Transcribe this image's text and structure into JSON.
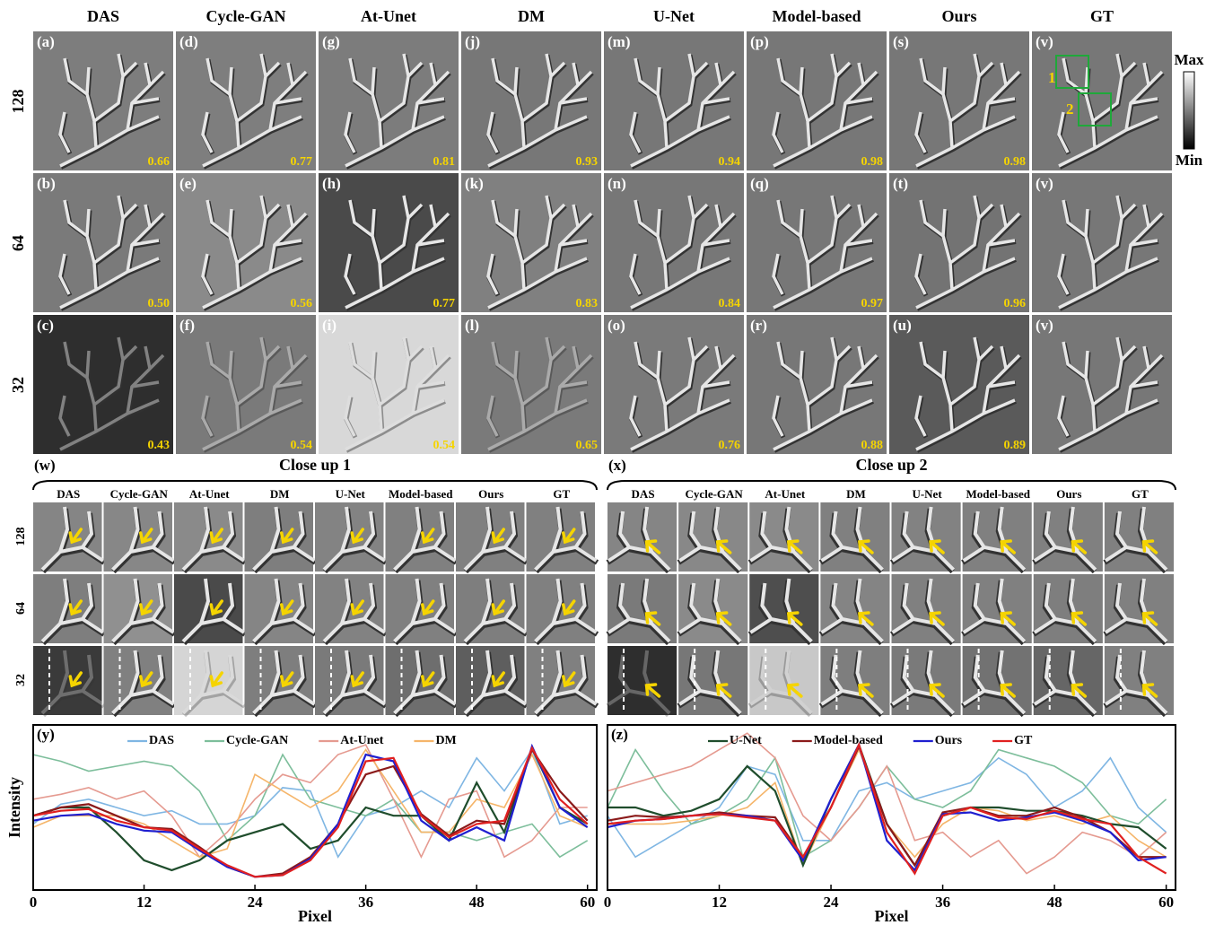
{
  "columns": [
    "DAS",
    "Cycle-GAN",
    "At-Unet",
    "DM",
    "U-Net",
    "Model-based",
    "Ours",
    "GT"
  ],
  "rows": [
    "128",
    "64",
    "32"
  ],
  "panels": [
    [
      {
        "label": "(a)",
        "score": "0.66"
      },
      {
        "label": "(d)",
        "score": "0.77"
      },
      {
        "label": "(g)",
        "score": "0.81"
      },
      {
        "label": "(j)",
        "score": "0.93"
      },
      {
        "label": "(m)",
        "score": "0.94"
      },
      {
        "label": "(p)",
        "score": "0.98"
      },
      {
        "label": "(s)",
        "score": "0.98"
      },
      {
        "label": "(v)"
      }
    ],
    [
      {
        "label": "(b)",
        "score": "0.50"
      },
      {
        "label": "(e)",
        "score": "0.56"
      },
      {
        "label": "(h)",
        "score": "0.77"
      },
      {
        "label": "(k)",
        "score": "0.83"
      },
      {
        "label": "(n)",
        "score": "0.84"
      },
      {
        "label": "(q)",
        "score": "0.97"
      },
      {
        "label": "(t)",
        "score": "0.96"
      },
      {
        "label": "(v)"
      }
    ],
    [
      {
        "label": "(c)",
        "score": "0.43"
      },
      {
        "label": "(f)",
        "score": "0.54"
      },
      {
        "label": "(i)",
        "score": "0.54"
      },
      {
        "label": "(l)",
        "score": "0.65"
      },
      {
        "label": "(o)",
        "score": "0.76"
      },
      {
        "label": "(r)",
        "score": "0.88"
      },
      {
        "label": "(u)",
        "score": "0.89"
      },
      {
        "label": "(v)"
      }
    ]
  ],
  "roi_labels": [
    "1",
    "2"
  ],
  "colorbar": {
    "max": "Max",
    "min": "Min"
  },
  "closeups": [
    {
      "label": "(w)",
      "title": "Close up 1"
    },
    {
      "label": "(x)",
      "title": "Close up 2"
    }
  ],
  "chart_data": [
    {
      "type": "line",
      "panel_label": "(y)",
      "xlabel": "Pixel",
      "ylabel": "Intensity",
      "x": [
        0,
        3,
        6,
        9,
        12,
        15,
        18,
        21,
        24,
        27,
        30,
        33,
        36,
        39,
        42,
        45,
        48,
        51,
        54,
        57,
        60
      ],
      "xlim": [
        0,
        61
      ],
      "xticks": [
        0,
        12,
        24,
        36,
        48,
        60
      ],
      "ylim": [
        0,
        1
      ],
      "series": [
        {
          "name": "DAS",
          "color": "#7fb6e3",
          "legend": true,
          "values": [
            0.4,
            0.52,
            0.55,
            0.5,
            0.45,
            0.48,
            0.4,
            0.4,
            0.45,
            0.62,
            0.6,
            0.2,
            0.45,
            0.5,
            0.6,
            0.5,
            0.8,
            0.6,
            0.85,
            0.4,
            0.45
          ]
        },
        {
          "name": "Cycle-GAN",
          "color": "#7dbe9b",
          "legend": true,
          "values": [
            0.82,
            0.78,
            0.72,
            0.75,
            0.78,
            0.75,
            0.6,
            0.3,
            0.45,
            0.82,
            0.55,
            0.5,
            0.45,
            0.55,
            0.35,
            0.35,
            0.3,
            0.35,
            0.4,
            0.2,
            0.3
          ]
        },
        {
          "name": "At-Unet",
          "color": "#e59a90",
          "legend": true,
          "values": [
            0.55,
            0.58,
            0.62,
            0.55,
            0.6,
            0.45,
            0.2,
            0.35,
            0.55,
            0.7,
            0.65,
            0.82,
            0.88,
            0.55,
            0.2,
            0.55,
            0.6,
            0.2,
            0.3,
            0.5,
            0.5
          ]
        },
        {
          "name": "DM",
          "color": "#f5b56a",
          "legend": true,
          "values": [
            0.38,
            0.45,
            0.45,
            0.45,
            0.4,
            0.3,
            0.2,
            0.25,
            0.7,
            0.6,
            0.5,
            0.6,
            0.85,
            0.6,
            0.35,
            0.35,
            0.55,
            0.5,
            0.82,
            0.45,
            0.38
          ]
        },
        {
          "name": "U-Net",
          "color": "#1f4d2c",
          "legend": false,
          "values": [
            0.45,
            0.5,
            0.5,
            0.35,
            0.18,
            0.12,
            0.18,
            0.3,
            0.35,
            0.4,
            0.25,
            0.3,
            0.5,
            0.45,
            0.45,
            0.3,
            0.65,
            0.35,
            0.86,
            0.5,
            0.4
          ]
        },
        {
          "name": "Model-based",
          "color": "#8b1a1a",
          "legend": false,
          "values": [
            0.45,
            0.5,
            0.52,
            0.45,
            0.38,
            0.37,
            0.26,
            0.14,
            0.08,
            0.1,
            0.2,
            0.4,
            0.7,
            0.75,
            0.46,
            0.33,
            0.42,
            0.4,
            0.85,
            0.6,
            0.42
          ]
        },
        {
          "name": "Ours",
          "color": "#1f1fd0",
          "legend": false,
          "values": [
            0.42,
            0.45,
            0.46,
            0.4,
            0.36,
            0.35,
            0.24,
            0.14,
            0.08,
            0.09,
            0.19,
            0.4,
            0.82,
            0.78,
            0.42,
            0.3,
            0.38,
            0.3,
            0.87,
            0.5,
            0.38
          ]
        },
        {
          "name": "GT",
          "color": "#e02020",
          "legend": false,
          "values": [
            0.45,
            0.48,
            0.49,
            0.42,
            0.38,
            0.36,
            0.25,
            0.15,
            0.08,
            0.09,
            0.18,
            0.38,
            0.78,
            0.8,
            0.45,
            0.32,
            0.4,
            0.42,
            0.86,
            0.55,
            0.4
          ]
        }
      ]
    },
    {
      "type": "line",
      "panel_label": "(z)",
      "xlabel": "Pixel",
      "x": [
        0,
        3,
        6,
        9,
        12,
        15,
        18,
        21,
        24,
        27,
        30,
        33,
        36,
        39,
        42,
        45,
        48,
        51,
        54,
        57,
        60
      ],
      "xlim": [
        0,
        61
      ],
      "xticks": [
        0,
        12,
        24,
        36,
        48,
        60
      ],
      "ylim": [
        0,
        1
      ],
      "series": [
        {
          "name": "DAS",
          "color": "#7fb6e3",
          "legend": false,
          "values": [
            0.45,
            0.2,
            0.3,
            0.4,
            0.5,
            0.75,
            0.7,
            0.3,
            0.3,
            0.6,
            0.65,
            0.55,
            0.6,
            0.65,
            0.8,
            0.7,
            0.5,
            0.6,
            0.8,
            0.5,
            0.35
          ]
        },
        {
          "name": "Cycle-GAN",
          "color": "#7dbe9b",
          "legend": false,
          "values": [
            0.5,
            0.85,
            0.6,
            0.4,
            0.45,
            0.55,
            0.8,
            0.2,
            0.3,
            0.5,
            0.75,
            0.55,
            0.5,
            0.6,
            0.85,
            0.8,
            0.75,
            0.65,
            0.45,
            0.4,
            0.55
          ]
        },
        {
          "name": "At-Unet",
          "color": "#e59a90",
          "legend": false,
          "values": [
            0.6,
            0.65,
            0.7,
            0.75,
            0.85,
            0.95,
            0.8,
            0.45,
            0.3,
            0.5,
            0.75,
            0.3,
            0.35,
            0.2,
            0.3,
            0.1,
            0.2,
            0.35,
            0.3,
            0.2,
            0.35
          ]
        },
        {
          "name": "DM",
          "color": "#f5b56a",
          "legend": false,
          "values": [
            0.4,
            0.4,
            0.4,
            0.42,
            0.45,
            0.5,
            0.65,
            0.15,
            0.5,
            0.85,
            0.4,
            0.2,
            0.4,
            0.5,
            0.48,
            0.42,
            0.45,
            0.4,
            0.45,
            0.3,
            0.2
          ]
        },
        {
          "name": "U-Net",
          "color": "#1f4d2c",
          "legend": true,
          "values": [
            0.5,
            0.5,
            0.45,
            0.48,
            0.55,
            0.75,
            0.6,
            0.15,
            0.55,
            0.88,
            0.4,
            0.15,
            0.45,
            0.5,
            0.5,
            0.48,
            0.48,
            0.45,
            0.4,
            0.38,
            0.25
          ]
        },
        {
          "name": "Model-based",
          "color": "#8b1a1a",
          "legend": true,
          "values": [
            0.42,
            0.45,
            0.44,
            0.45,
            0.47,
            0.45,
            0.44,
            0.2,
            0.5,
            0.87,
            0.4,
            0.15,
            0.47,
            0.5,
            0.45,
            0.45,
            0.5,
            0.44,
            0.35,
            0.2,
            0.2
          ]
        },
        {
          "name": "Ours",
          "color": "#1f1fd0",
          "legend": true,
          "values": [
            0.38,
            0.42,
            0.43,
            0.45,
            0.46,
            0.45,
            0.42,
            0.18,
            0.55,
            0.88,
            0.3,
            0.12,
            0.46,
            0.47,
            0.42,
            0.44,
            0.47,
            0.42,
            0.35,
            0.18,
            0.2
          ]
        },
        {
          "name": "GT",
          "color": "#e02020",
          "legend": true,
          "values": [
            0.4,
            0.42,
            0.43,
            0.45,
            0.46,
            0.44,
            0.42,
            0.2,
            0.5,
            0.88,
            0.35,
            0.1,
            0.45,
            0.5,
            0.44,
            0.43,
            0.48,
            0.43,
            0.4,
            0.2,
            0.1
          ]
        }
      ]
    }
  ]
}
